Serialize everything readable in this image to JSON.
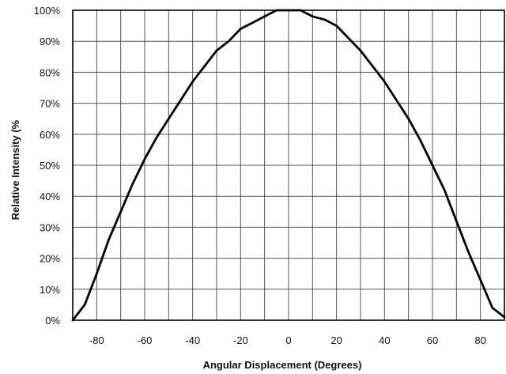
{
  "chart_data": {
    "type": "line",
    "title": "",
    "xlabel": "Angular Displacement (Degrees)",
    "ylabel": "Relative Intensity (%",
    "xlim": [
      -90,
      90
    ],
    "ylim": [
      0,
      100
    ],
    "x_ticks": [
      -80,
      -60,
      -40,
      -20,
      0,
      20,
      40,
      60,
      80
    ],
    "x_tick_labels": [
      "-80",
      "-60",
      "-40",
      "-20",
      "0",
      "20",
      "40",
      "60",
      "80"
    ],
    "y_ticks": [
      0,
      10,
      20,
      30,
      40,
      50,
      60,
      70,
      80,
      90,
      100
    ],
    "y_tick_labels": [
      "0%",
      "10%",
      "20%",
      "30%",
      "40%",
      "50%",
      "60%",
      "70%",
      "80%",
      "90%",
      "100%"
    ],
    "grid": true,
    "legend": "none",
    "line_color": "#000000",
    "series": [
      {
        "x": [
          -90,
          -85,
          -80,
          -75,
          -70,
          -65,
          -60,
          -55,
          -50,
          -45,
          -40,
          -35,
          -30,
          -25,
          -20,
          -15,
          -10,
          -5,
          0,
          5,
          10,
          15,
          20,
          25,
          30,
          35,
          40,
          45,
          50,
          55,
          60,
          65,
          70,
          75,
          80,
          85,
          90
        ],
        "y": [
          0,
          5,
          15,
          26,
          35,
          44,
          52,
          59,
          65,
          71,
          77,
          82,
          87,
          90,
          94,
          96,
          98,
          100,
          100,
          100,
          98,
          97,
          95,
          91,
          87,
          82,
          77,
          71,
          65,
          58,
          50,
          42,
          32,
          22,
          13,
          4,
          1
        ]
      }
    ]
  }
}
